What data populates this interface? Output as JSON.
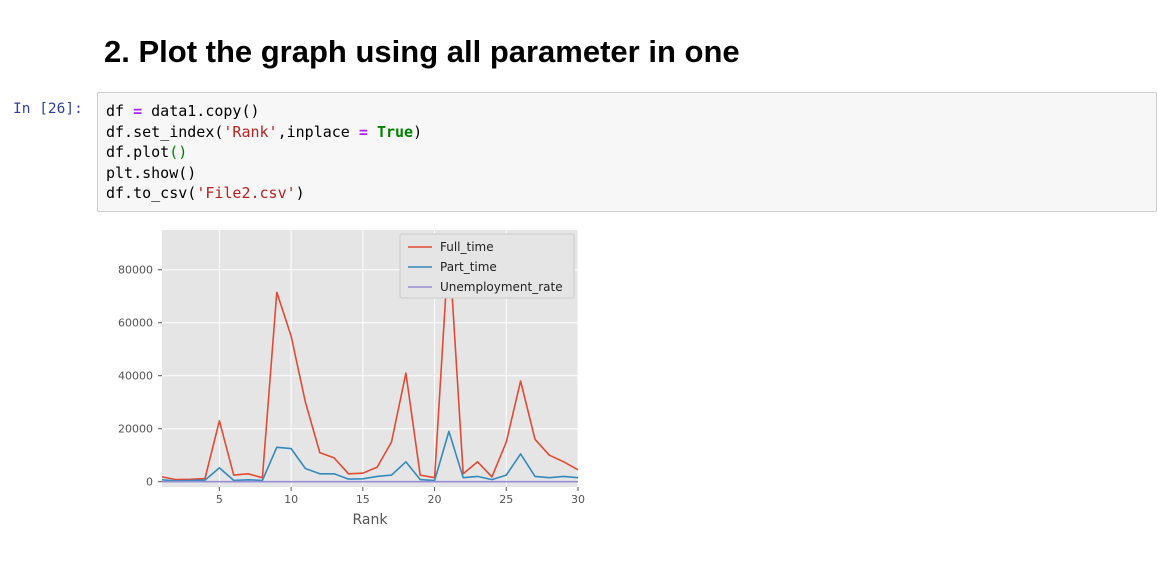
{
  "heading": "2. Plot the graph using all parameter in one",
  "cell": {
    "prompt": "In [26]:",
    "lines": [
      [
        {
          "t": "df ",
          "c": ""
        },
        {
          "t": "=",
          "c": "op"
        },
        {
          "t": " data1.copy()",
          "c": ""
        }
      ],
      [
        {
          "t": "df.set_index(",
          "c": ""
        },
        {
          "t": "'Rank'",
          "c": "str"
        },
        {
          "t": ",inplace ",
          "c": ""
        },
        {
          "t": "=",
          "c": "op"
        },
        {
          "t": " ",
          "c": ""
        },
        {
          "t": "True",
          "c": "kw"
        },
        {
          "t": ")",
          "c": ""
        }
      ],
      [
        {
          "t": "df.plot",
          "c": ""
        },
        {
          "t": "()",
          "c": "green"
        }
      ],
      [
        {
          "t": "plt.show()",
          "c": ""
        }
      ],
      [
        {
          "t": "df.to_csv(",
          "c": ""
        },
        {
          "t": "'File2.csv'",
          "c": "str"
        },
        {
          "t": ")",
          "c": ""
        }
      ]
    ]
  },
  "chart_data": {
    "type": "line",
    "xlabel": "Rank",
    "ylabel": "",
    "xlim": [
      1,
      30
    ],
    "ylim": [
      -2000,
      95000
    ],
    "xticks": [
      5,
      10,
      15,
      20,
      25,
      30
    ],
    "yticks": [
      0,
      20000,
      40000,
      60000,
      80000
    ],
    "grid": true,
    "legend_position": "top-right",
    "x": [
      1,
      2,
      3,
      4,
      5,
      6,
      7,
      8,
      9,
      10,
      11,
      12,
      13,
      14,
      15,
      16,
      17,
      18,
      19,
      20,
      21,
      22,
      23,
      24,
      25,
      26,
      27,
      28,
      29,
      30
    ],
    "series": [
      {
        "name": "Full_time",
        "color": "#e24a33",
        "values": [
          1800,
          800,
          900,
          1200,
          23000,
          2500,
          3000,
          1500,
          71500,
          55000,
          30000,
          11000,
          9000,
          3000,
          3200,
          5500,
          15000,
          41000,
          2500,
          1500,
          90000,
          3000,
          7500,
          1800,
          15000,
          38000,
          16000,
          10000,
          7500,
          4500
        ]
      },
      {
        "name": "Part_time",
        "color": "#348abd",
        "values": [
          700,
          300,
          400,
          600,
          5200,
          500,
          700,
          500,
          13000,
          12500,
          5000,
          3000,
          3000,
          1000,
          1100,
          2000,
          2500,
          7500,
          800,
          400,
          19000,
          1500,
          2000,
          800,
          2500,
          10500,
          2000,
          1500,
          2000,
          1500
        ]
      },
      {
        "name": "Unemployment_rate",
        "color": "#988ed5",
        "values": [
          0.05,
          0.06,
          0.07,
          0.04,
          0.05,
          0.05,
          0.06,
          0.06,
          0.05,
          0.07,
          0.06,
          0.05,
          0.05,
          0.05,
          0.06,
          0.05,
          0.06,
          0.06,
          0.05,
          0.06,
          0.07,
          0.05,
          0.05,
          0.06,
          0.05,
          0.06,
          0.05,
          0.04,
          0.05,
          0.05
        ]
      }
    ]
  }
}
